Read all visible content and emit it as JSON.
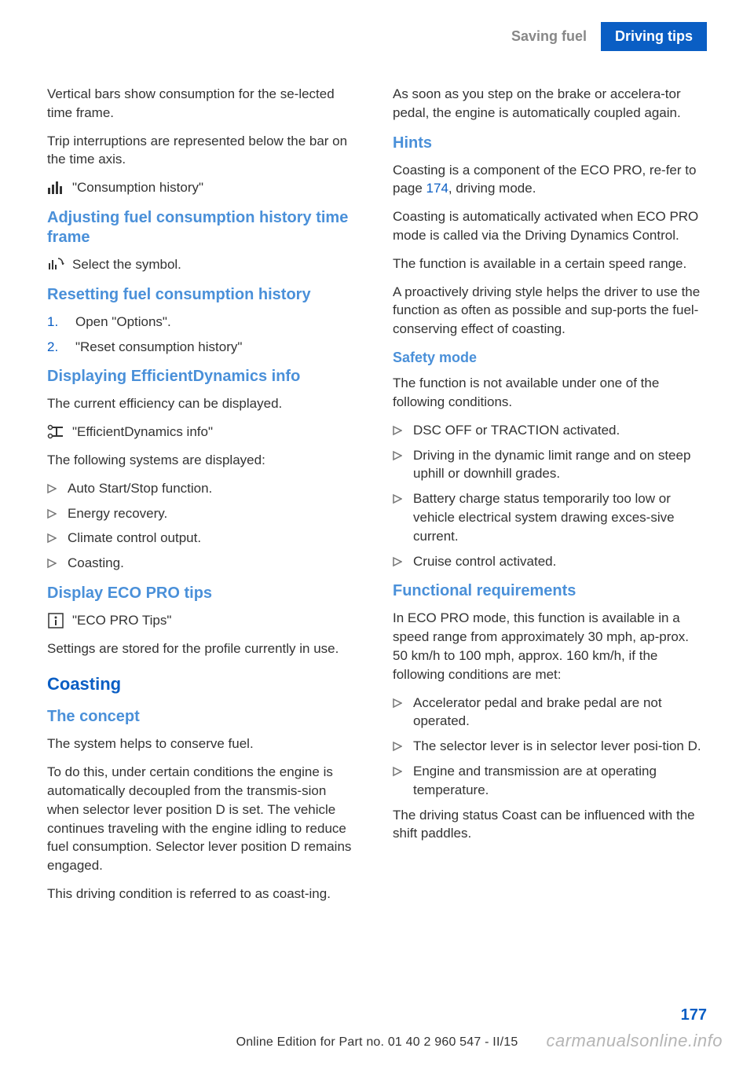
{
  "header": {
    "section": "Saving fuel",
    "topic": "Driving tips",
    "section_color": "#888888",
    "topic_bg": "#0a5ec4",
    "topic_color": "#ffffff"
  },
  "left": {
    "intro1": "Vertical bars show consumption for the se‐lected time frame.",
    "intro2": "Trip interruptions are represented below the bar on the time axis.",
    "consumption_label": "\"Consumption history\"",
    "h_adjust": "Adjusting fuel consumption history time frame",
    "adjust_text": "Select the symbol.",
    "h_reset": "Resetting fuel consumption history",
    "reset_steps": [
      {
        "n": "1.",
        "t": "Open \"Options\"."
      },
      {
        "n": "2.",
        "t": "\"Reset consumption history\""
      }
    ],
    "h_eff": "Displaying EfficientDynamics info",
    "eff_p1": "The current efficiency can be displayed.",
    "eff_label": "\"EfficientDynamics info\"",
    "eff_p2": "The following systems are displayed:",
    "eff_items": [
      "Auto Start/Stop function.",
      "Energy recovery.",
      "Climate control output.",
      "Coasting."
    ],
    "h_tips": "Display ECO PRO tips",
    "tips_label": "\"ECO PRO Tips\"",
    "tips_p": "Settings are stored for the profile currently in use.",
    "h_coasting": "Coasting",
    "h_concept": "The concept",
    "concept_p1": "The system helps to conserve fuel.",
    "concept_p2": "To do this, under certain conditions the engine is automatically decoupled from the transmis‐sion when selector lever position D is set. The vehicle continues traveling with the engine idling to reduce fuel consumption. Selector lever position D remains engaged.",
    "concept_p3": "This driving condition is referred to as coast‐ing."
  },
  "right": {
    "p1": "As soon as you step on the brake or accelera‐tor pedal, the engine is automatically coupled again.",
    "h_hints": "Hints",
    "hints_p1a": "Coasting is a component of the ECO PRO, re‐fer to page ",
    "hints_link": "174",
    "hints_p1b": ", driving mode.",
    "hints_p2": "Coasting is automatically activated when ECO PRO mode is called via the Driving Dynamics Control.",
    "hints_p3": "The function is available in a certain speed range.",
    "hints_p4": "A proactively driving style helps the driver to use the function as often as possible and sup‐ports the fuel-conserving effect of coasting.",
    "h_safety": "Safety mode",
    "safety_p": "The function is not available under one of the following conditions.",
    "safety_items": [
      "DSC OFF or TRACTION activated.",
      "Driving in the dynamic limit range and on steep uphill or downhill grades.",
      "Battery charge status temporarily too low or vehicle electrical system drawing exces‐sive current.",
      "Cruise control activated."
    ],
    "h_func": "Functional requirements",
    "func_p": "In ECO PRO mode, this function is available in a speed range from approximately 30 mph, ap‐prox. 50 km/h to 100 mph, approx. 160 km/h, if the following conditions are met:",
    "func_items": [
      "Accelerator pedal and brake pedal are not operated.",
      "The selector lever is in selector lever posi‐tion D.",
      "Engine and transmission are at operating temperature."
    ],
    "func_p2": "The driving status Coast can be influenced with the shift paddles."
  },
  "page_number": "177",
  "footer": "Online Edition for Part no. 01 40 2 960 547 - II/15",
  "watermark": "carmanualsonline.info",
  "colors": {
    "h3": "#4a90d9",
    "h2": "#0a5ec4",
    "body": "#333333",
    "link": "#0a5ec4",
    "bullet": "#777777"
  }
}
